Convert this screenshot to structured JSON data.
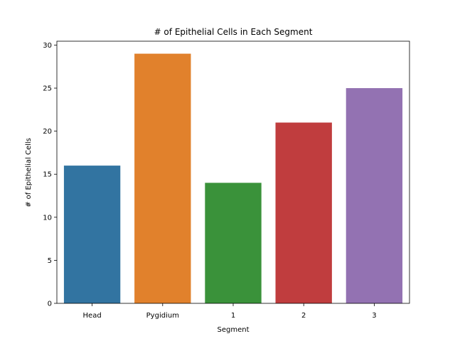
{
  "chart_data": {
    "type": "bar",
    "title": "# of Epithelial Cells in Each Segment",
    "xlabel": "Segment",
    "ylabel": "# of Epithelial Cells",
    "categories": [
      "Head",
      "Pygidium",
      "1",
      "2",
      "3"
    ],
    "values": [
      16,
      29,
      14,
      21,
      25
    ],
    "colors": [
      "#3274a1",
      "#e1812c",
      "#3a923a",
      "#c03d3e",
      "#9372b2"
    ],
    "ylim": [
      0,
      30.45
    ],
    "yticks": [
      0,
      5,
      10,
      15,
      20,
      25,
      30
    ],
    "grid": false,
    "legend": "none"
  }
}
